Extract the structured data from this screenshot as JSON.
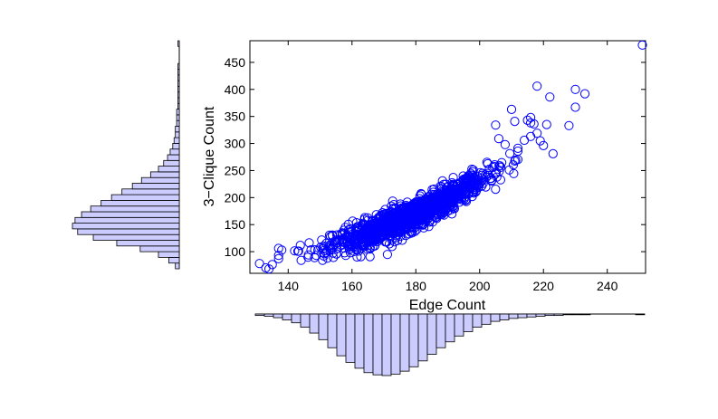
{
  "chart_data": {
    "type": "scatter",
    "title": "",
    "xlabel": "Edge Count",
    "ylabel": "3−Clique Count",
    "xlim": [
      128,
      252
    ],
    "ylim": [
      60,
      490
    ],
    "xticks": [
      140,
      160,
      180,
      200,
      220,
      240
    ],
    "yticks": [
      100,
      150,
      200,
      250,
      300,
      350,
      400,
      450
    ],
    "grid": false,
    "legend": "none",
    "marker": "open-circle",
    "point_color": "#0000ff",
    "bulk_distribution": {
      "n_points": 1400,
      "edge_count_mean": 178,
      "edge_count_sd": 12,
      "clique_fit_intercept": 164,
      "clique_fit_slope": 2.6,
      "clique_fit_curvature": 0.02,
      "clique_noise_sd": 13
    },
    "outlier_points": [
      {
        "x": 131,
        "y": 78
      },
      {
        "x": 133,
        "y": 70
      },
      {
        "x": 134,
        "y": 68
      },
      {
        "x": 135,
        "y": 76
      },
      {
        "x": 137,
        "y": 87
      },
      {
        "x": 138,
        "y": 103
      },
      {
        "x": 251,
        "y": 482
      },
      {
        "x": 218,
        "y": 406
      },
      {
        "x": 222,
        "y": 386
      },
      {
        "x": 230,
        "y": 400
      },
      {
        "x": 233,
        "y": 392
      },
      {
        "x": 230,
        "y": 367
      },
      {
        "x": 210,
        "y": 363
      },
      {
        "x": 215,
        "y": 343
      },
      {
        "x": 216,
        "y": 348
      },
      {
        "x": 216,
        "y": 338
      },
      {
        "x": 217,
        "y": 336
      },
      {
        "x": 211,
        "y": 341
      },
      {
        "x": 221,
        "y": 335
      },
      {
        "x": 228,
        "y": 333
      },
      {
        "x": 205,
        "y": 334
      },
      {
        "x": 218,
        "y": 319
      },
      {
        "x": 216,
        "y": 313
      },
      {
        "x": 214,
        "y": 306
      },
      {
        "x": 220,
        "y": 296
      },
      {
        "x": 223,
        "y": 281
      },
      {
        "x": 219,
        "y": 305
      },
      {
        "x": 208,
        "y": 298
      },
      {
        "x": 212,
        "y": 291
      },
      {
        "x": 206,
        "y": 309
      }
    ],
    "histograms": {
      "fill": "#ccccff",
      "edge_color": "#000000",
      "x_marginal_counts": [
        2,
        3,
        5,
        8,
        12,
        18,
        26,
        35,
        46,
        57,
        66,
        74,
        80,
        83,
        84,
        82,
        78,
        72,
        64,
        55,
        46,
        38,
        30,
        24,
        18,
        14,
        10,
        8,
        6,
        5,
        4,
        3,
        2,
        2,
        1,
        1,
        1,
        0,
        0,
        0,
        0,
        0,
        1
      ],
      "y_marginal_counts": [
        3,
        8,
        16,
        30,
        48,
        66,
        78,
        82,
        80,
        75,
        68,
        60,
        52,
        44,
        36,
        29,
        22,
        16,
        12,
        9,
        7,
        5,
        4,
        3,
        3,
        2,
        2,
        2,
        1,
        1,
        1,
        1,
        1,
        1,
        1,
        1,
        0,
        0,
        0,
        1
      ]
    }
  }
}
